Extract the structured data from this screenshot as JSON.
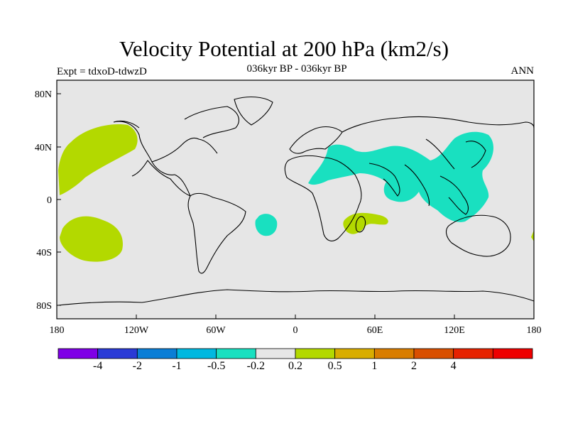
{
  "title": "Velocity Potential at 200 hPa (km2/s)",
  "subtitle": "036kyr BP - 036kyr BP",
  "left_label": "Expt = tdxoD-tdwzD",
  "right_label": "ANN",
  "lon_ticks": [
    "180",
    "120W",
    "60W",
    "0",
    "60E",
    "120E",
    "180"
  ],
  "lat_ticks": [
    "80N",
    "40N",
    "0",
    "40S",
    "80S"
  ],
  "colorbar": {
    "colors": [
      "#7f00e6",
      "#2a3ad6",
      "#0a7ed6",
      "#00b8e0",
      "#19e0c0",
      "#e6e6e6",
      "#b3d900",
      "#d9ad00",
      "#d97d00",
      "#d94f00",
      "#e62200",
      "#ee0000"
    ],
    "labels": [
      "-4",
      "-2",
      "-1",
      "-0.5",
      "-0.2",
      "0.2",
      "0.5",
      "1",
      "2",
      "4"
    ]
  },
  "colors": {
    "background": "#e6e6e6",
    "positive": "#b3d900",
    "negative": "#19e0c0",
    "coast": "#000000"
  }
}
